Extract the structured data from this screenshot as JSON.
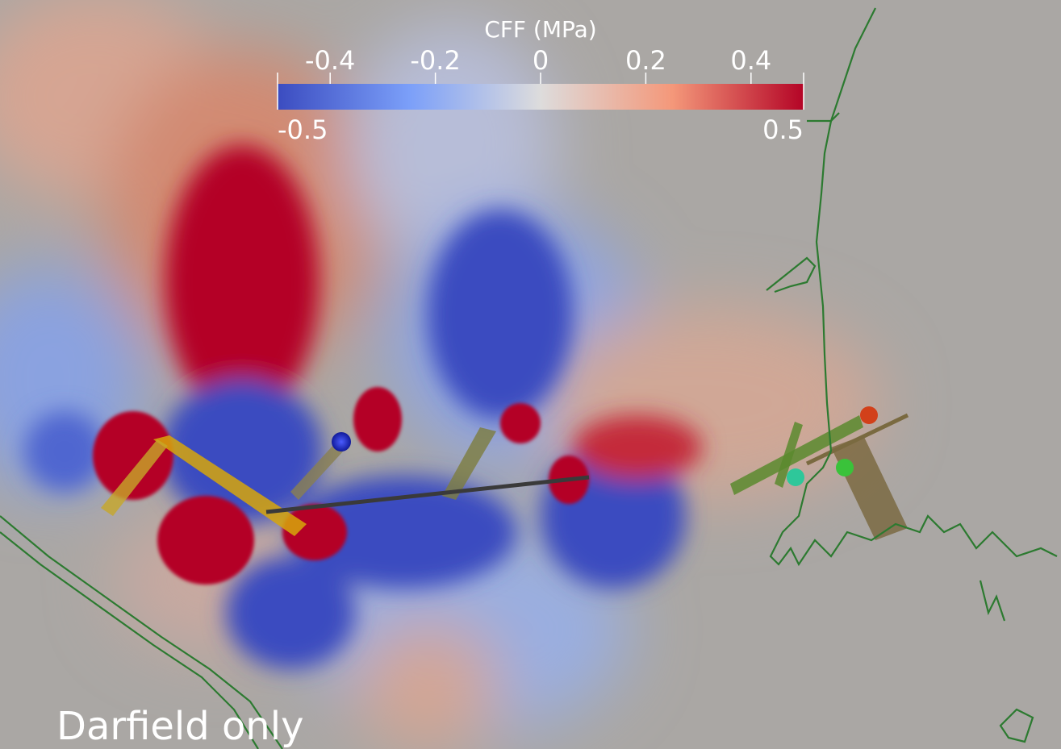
{
  "colorbar": {
    "title": "CFF (MPa)",
    "range": [
      -0.5,
      0.5
    ],
    "range_labels": [
      "-0.5",
      "0.5"
    ],
    "ticks": [
      -0.4,
      -0.2,
      0,
      0.2,
      0.4
    ]
  },
  "caption": "Darfield only"
}
